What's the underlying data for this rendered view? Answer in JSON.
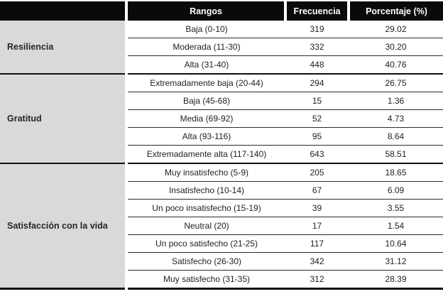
{
  "table": {
    "headers": {
      "group": "",
      "range": "Rangos",
      "frequency": "Frecuencia",
      "percentage": "Porcentaje (%)"
    },
    "sections": [
      {
        "group": "Resiliencia",
        "rows": [
          {
            "range": "Baja (0-10)",
            "freq": "319",
            "pct": "29.02"
          },
          {
            "range": "Moderada (11-30)",
            "freq": "332",
            "pct": "30.20"
          },
          {
            "range": "Alta (31-40)",
            "freq": "448",
            "pct": "40.76"
          }
        ]
      },
      {
        "group": "Gratitud",
        "rows": [
          {
            "range": "Extremadamente baja (20-44)",
            "freq": "294",
            "pct": "26.75"
          },
          {
            "range": "Baja (45-68)",
            "freq": "15",
            "pct": "1.36"
          },
          {
            "range": "Media (69-92)",
            "freq": "52",
            "pct": "4.73"
          },
          {
            "range": "Alta (93-116)",
            "freq": "95",
            "pct": "8.64"
          },
          {
            "range": "Extremadamente alta (117-140)",
            "freq": "643",
            "pct": "58.51"
          }
        ]
      },
      {
        "group": "Satisfacción con la vida",
        "rows": [
          {
            "range": "Muy insatisfecho (5-9)",
            "freq": "205",
            "pct": "18.65"
          },
          {
            "range": "Insatisfecho (10-14)",
            "freq": "67",
            "pct": "6.09"
          },
          {
            "range": "Un poco insatisfecho (15-19)",
            "freq": "39",
            "pct": "3.55"
          },
          {
            "range": "Neutral (20)",
            "freq": "17",
            "pct": "1.54"
          },
          {
            "range": "Un poco satisfecho (21-25)",
            "freq": "117",
            "pct": "10.64"
          },
          {
            "range": "Satisfecho (26-30)",
            "freq": "342",
            "pct": "31.12"
          },
          {
            "range": "Muy satisfecho (31-35)",
            "freq": "312",
            "pct": "28.39"
          }
        ]
      }
    ]
  },
  "colors": {
    "header_bg": "#0a0a0a",
    "header_text": "#ffffff",
    "group_bg": "#d9d9d9",
    "row_line": "#2b2b2b",
    "section_line": "#0f0f0f"
  }
}
